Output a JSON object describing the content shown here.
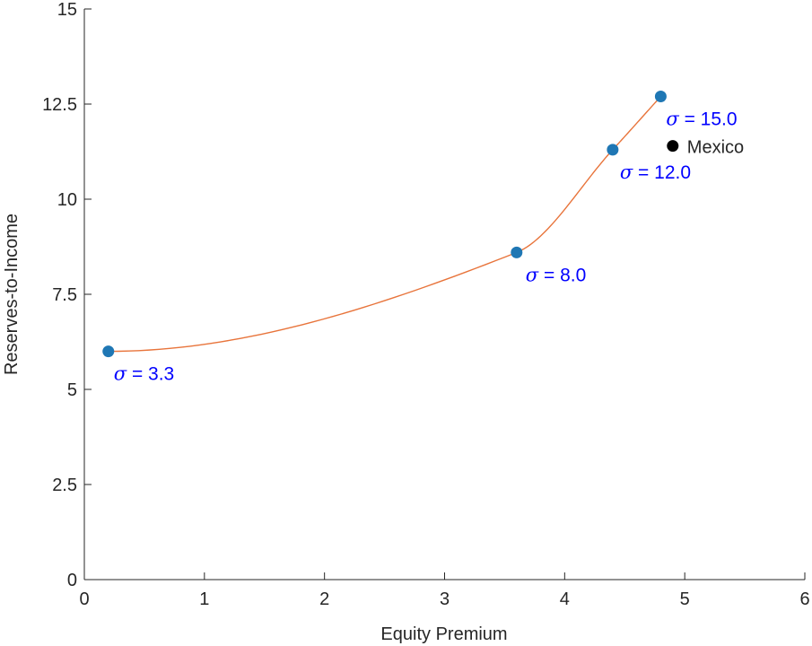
{
  "chart_data": {
    "type": "scatter",
    "title": "",
    "xlabel": "Equity Premium",
    "ylabel": "Reserves-to-Income",
    "xlim": [
      0,
      6
    ],
    "ylim": [
      0,
      15
    ],
    "xticks": [
      0,
      1,
      2,
      3,
      4,
      5,
      6
    ],
    "xtick_labels": [
      "0",
      "1",
      "2",
      "3",
      "4",
      "5",
      "6"
    ],
    "yticks": [
      0,
      2.5,
      5,
      7.5,
      10,
      12.5,
      15
    ],
    "ytick_labels": [
      "0",
      "2.5",
      "5",
      "7.5",
      "10",
      "12.5",
      "15"
    ],
    "grid": false,
    "series": [
      {
        "points": [
          {
            "x": 0.2,
            "y": 6.0,
            "label": "σ = 3.3"
          },
          {
            "x": 3.6,
            "y": 8.6,
            "label": "σ = 8.0"
          },
          {
            "x": 4.4,
            "y": 11.3,
            "label": "σ = 12.0"
          },
          {
            "x": 4.8,
            "y": 12.7,
            "label": "σ = 15.0"
          }
        ],
        "marker_color": "#1f77b4",
        "line_color": "#e8743b",
        "label_color": "#0000ff"
      },
      {
        "name": "Mexico",
        "points": [
          {
            "x": 4.9,
            "y": 11.4
          }
        ],
        "marker_color": "#000000"
      }
    ]
  }
}
